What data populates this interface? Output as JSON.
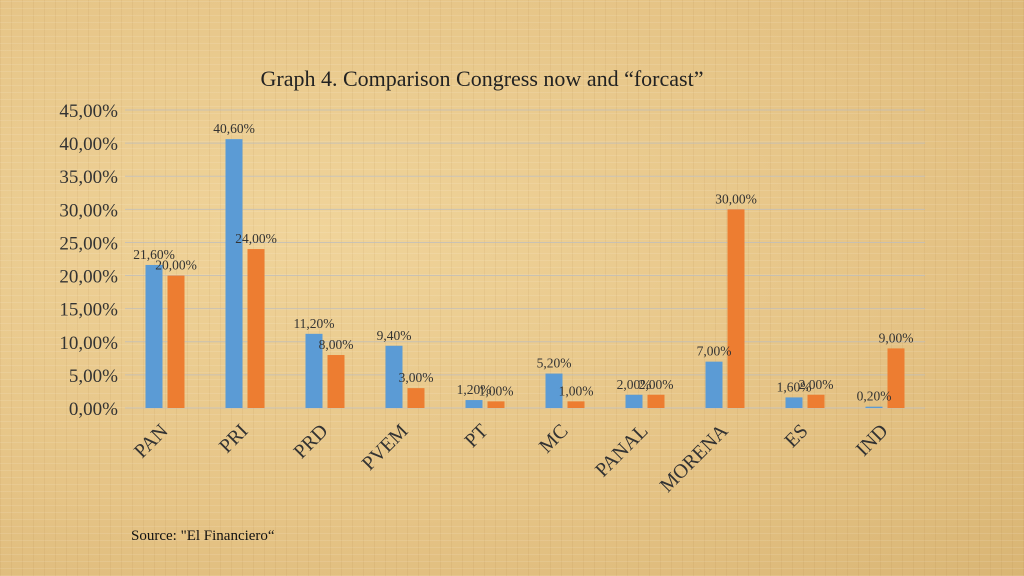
{
  "chart_data": {
    "type": "bar",
    "title": "Graph 4. Comparison Congress now and “forcast”",
    "categories": [
      "PAN",
      "PRI",
      "PRD",
      "PVEM",
      "PT",
      "MC",
      "PANAL",
      "MORENA",
      "ES",
      "IND"
    ],
    "series": [
      {
        "values": [
          21.6,
          40.6,
          11.2,
          9.4,
          1.2,
          5.2,
          2.0,
          7.0,
          1.6,
          0.2
        ],
        "labels": [
          "21,60%",
          "40,60%",
          "11,20%",
          "9,40%",
          "1,20%",
          "5,20%",
          "2,00%",
          "7,00%",
          "1,60%",
          "0,20%"
        ],
        "color": "#5b9bd5"
      },
      {
        "values": [
          20.0,
          24.0,
          8.0,
          3.0,
          1.0,
          1.0,
          2.0,
          30.0,
          2.0,
          9.0
        ],
        "labels": [
          "20,00%",
          "24,00%",
          "8,00%",
          "3,00%",
          "1,00%",
          "1,00%",
          "2,00%",
          "30,00%",
          "2,00%",
          "9,00%"
        ],
        "color": "#ed7d31"
      }
    ],
    "yticks": [
      "0,00%",
      "5,00%",
      "10,00%",
      "15,00%",
      "20,00%",
      "25,00%",
      "30,00%",
      "35,00%",
      "40,00%",
      "45,00%"
    ],
    "ylim": [
      0,
      45
    ],
    "grid": true
  },
  "source": "Source: \"El Financiero“"
}
